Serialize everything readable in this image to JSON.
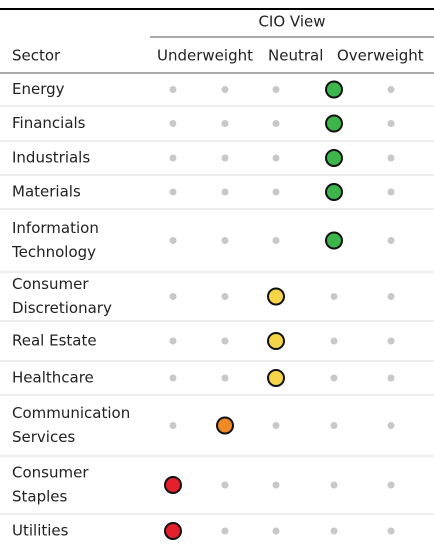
{
  "header": {
    "group": "CIO View",
    "sector": "Sector",
    "columns": [
      "Underweight",
      "Neutral",
      "Overweight"
    ]
  },
  "rows": [
    {
      "name": [
        "Energy"
      ],
      "position": 3,
      "color": "#3cb54a"
    },
    {
      "name": [
        "Financials"
      ],
      "position": 3,
      "color": "#3cb54a"
    },
    {
      "name": [
        "Industrials"
      ],
      "position": 3,
      "color": "#3cb54a"
    },
    {
      "name": [
        "Materials"
      ],
      "position": 3,
      "color": "#3cb54a"
    },
    {
      "name": [
        "Information",
        "Technology"
      ],
      "position": 3,
      "color": "#3cb54a"
    },
    {
      "name": [
        "Consumer",
        "Discretionary"
      ],
      "position": 2,
      "color": "#f5d547"
    },
    {
      "name": [
        "Real Estate"
      ],
      "position": 2,
      "color": "#f5d547"
    },
    {
      "name": [
        "Healthcare"
      ],
      "position": 2,
      "color": "#f5d547"
    },
    {
      "name": [
        "Communication",
        "Services"
      ],
      "position": 1,
      "color": "#f08a24"
    },
    {
      "name": [
        "Consumer",
        "Staples"
      ],
      "position": 0,
      "color": "#e3202c"
    },
    {
      "name": [
        "Utilities"
      ],
      "position": 0,
      "color": "#e3202c"
    }
  ]
}
